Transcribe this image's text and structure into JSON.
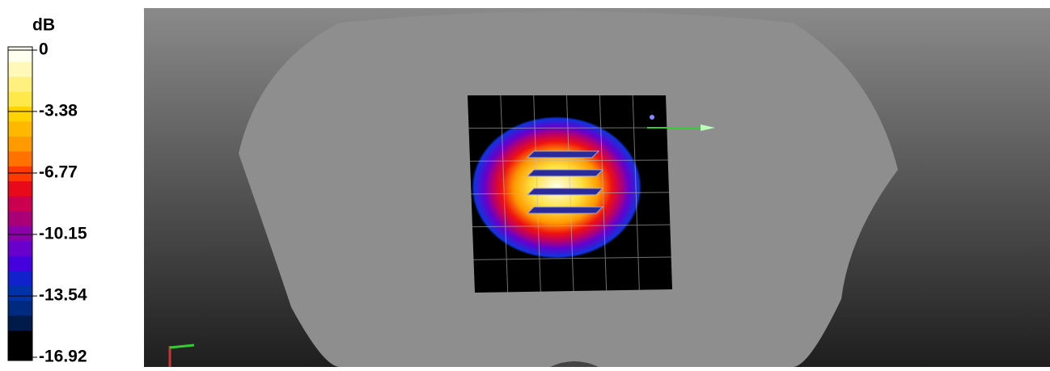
{
  "legend": {
    "unit": "dB",
    "ticks": [
      0,
      -3.38,
      -6.77,
      -10.15,
      -13.54,
      -16.92
    ]
  }
}
